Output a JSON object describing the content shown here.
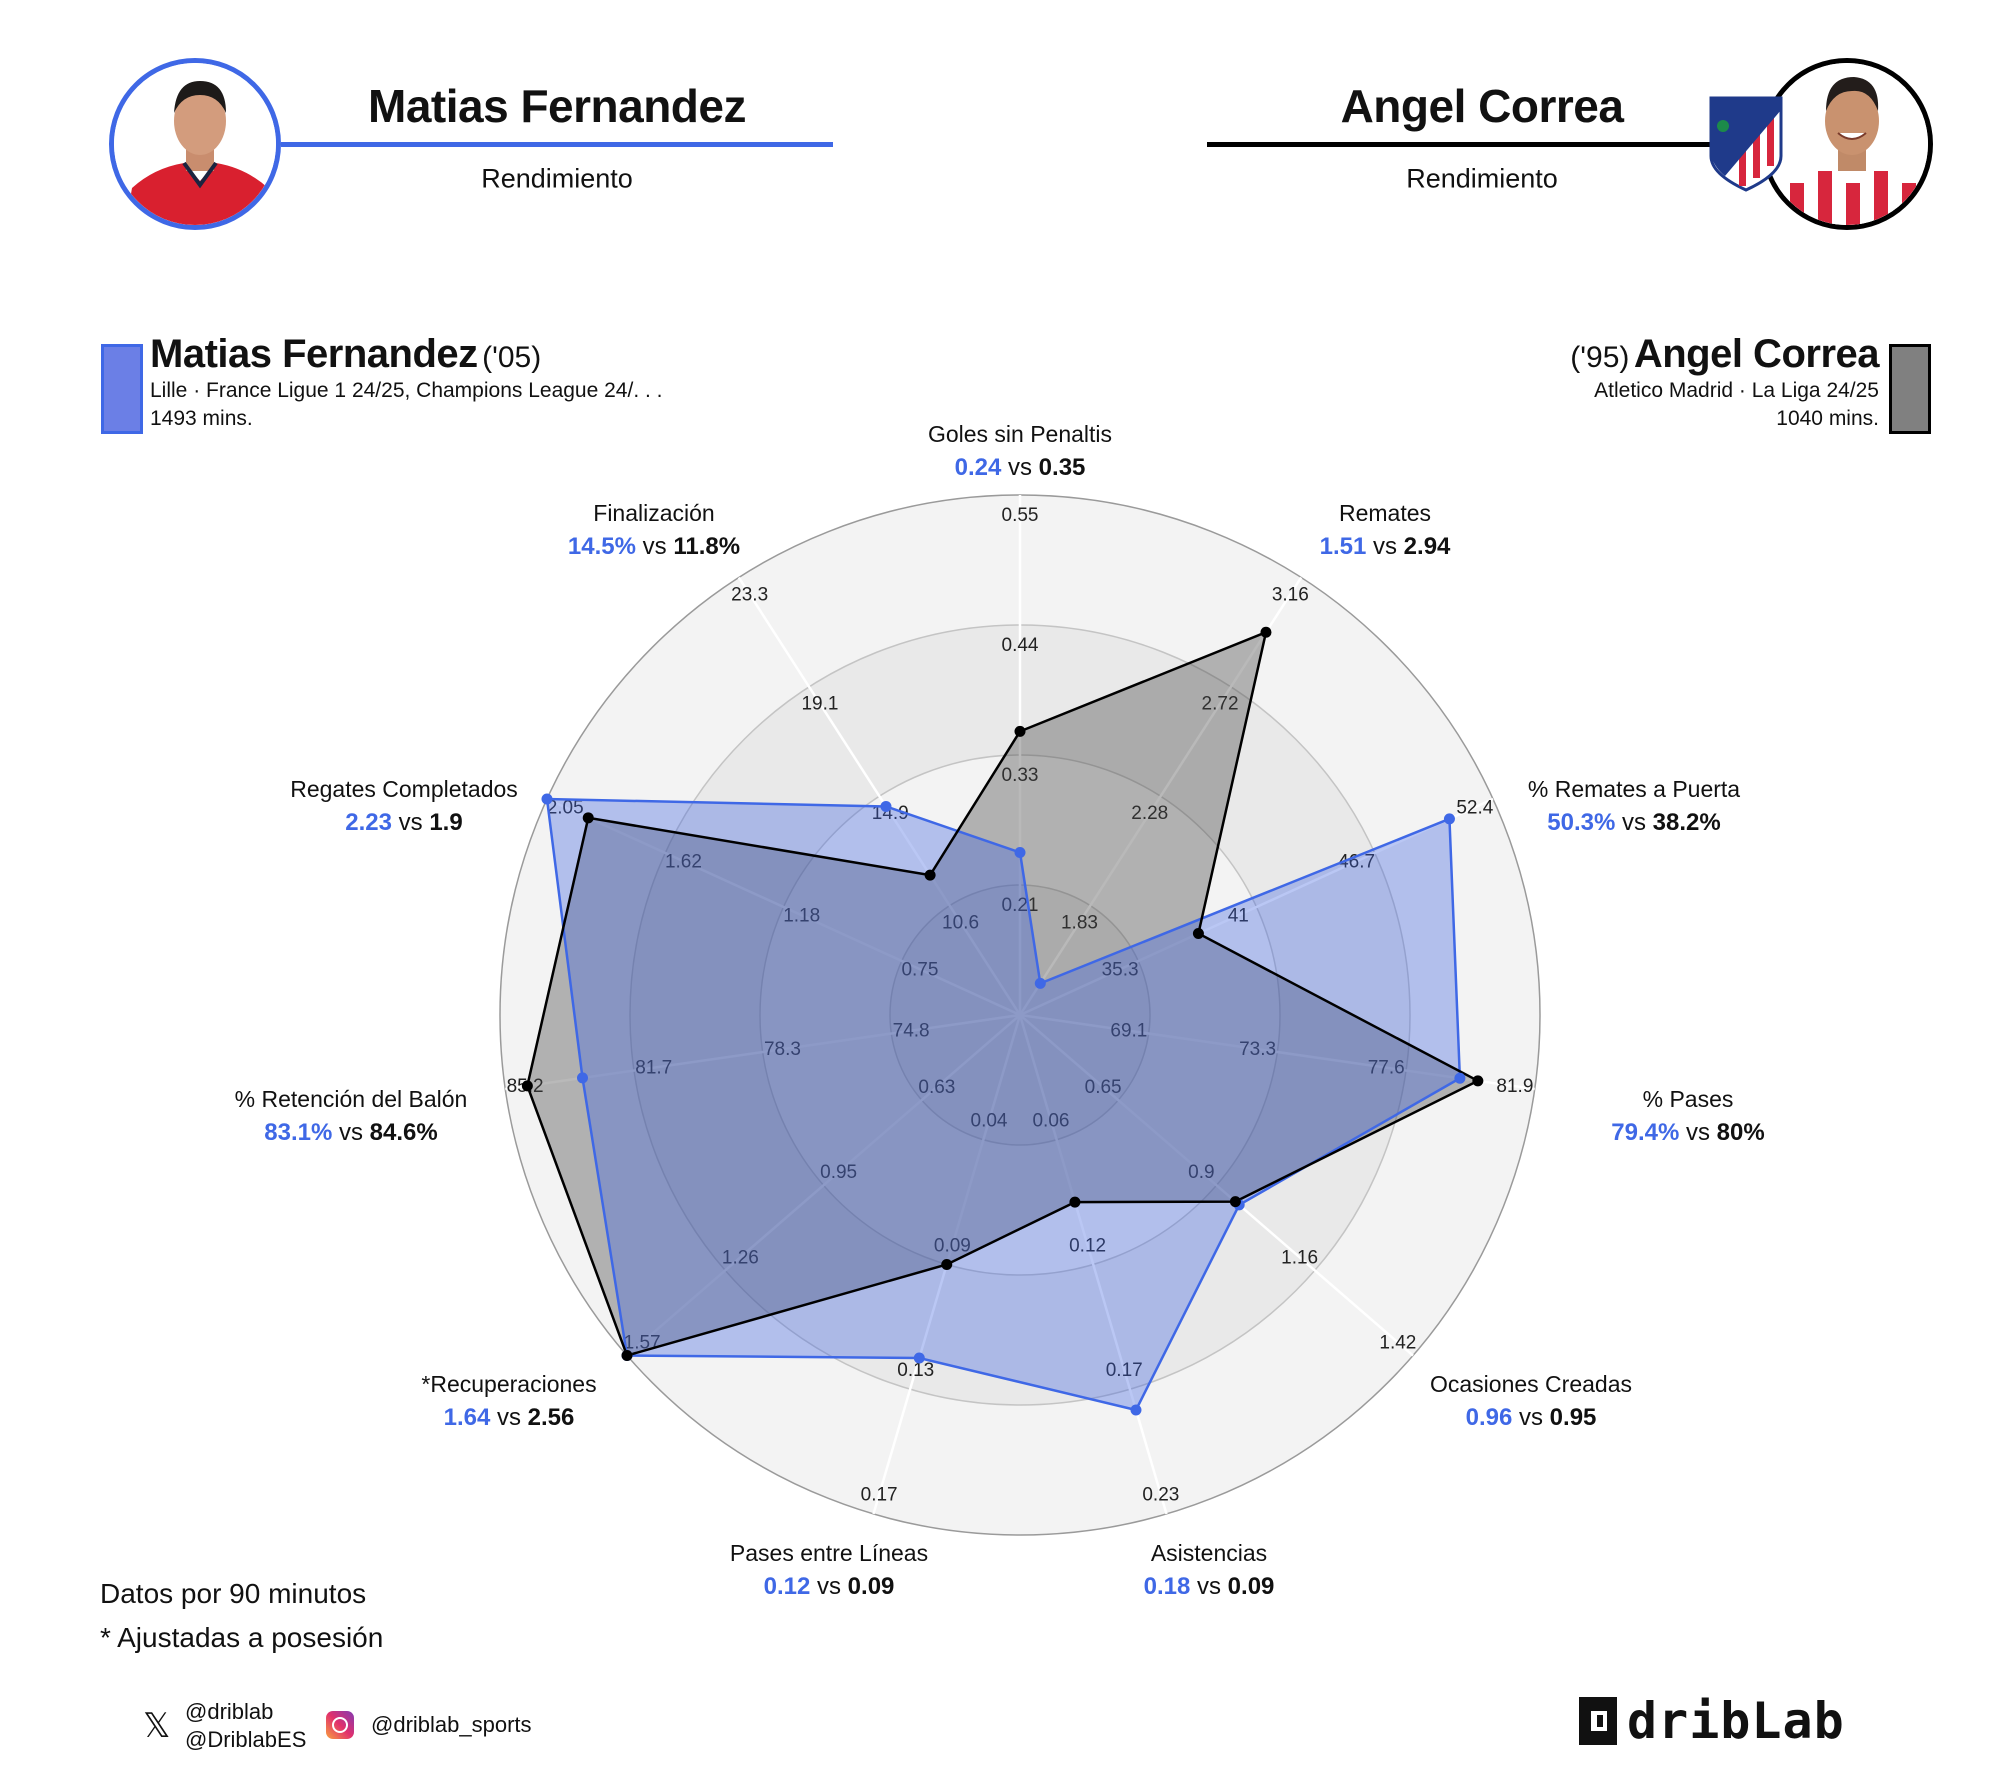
{
  "header": {
    "left": {
      "name": "Matias Fernandez",
      "subtitle": "Rendimiento",
      "color": "#3f68e6"
    },
    "right": {
      "name": "Angel Correa",
      "subtitle": "Rendimiento",
      "color": "#000000"
    }
  },
  "legend": {
    "left": {
      "name": "Matias Fernandez",
      "year": "('05)",
      "club_line": "Lille · France Ligue 1 24/25, Champions League 24/. . .",
      "minutes": "1493 mins.",
      "color": "#6b7fe6"
    },
    "right": {
      "name": "Angel Correa",
      "year": "('95)",
      "club_line": "Atletico Madrid · La Liga 24/25",
      "minutes": "1040 mins.",
      "color": "#808080"
    }
  },
  "chart_data": {
    "type": "radar",
    "series": [
      {
        "name": "Matias Fernandez",
        "color": "#3f68e6"
      },
      {
        "name": "Angel Correa",
        "color": "#000000"
      }
    ],
    "vs_word": "vs",
    "axes": [
      {
        "label": "Goles sin Penaltis",
        "ticks": [
          "0.21",
          "0.33",
          "0.44",
          "0.55"
        ],
        "values": [
          0.24,
          0.35
        ],
        "text": [
          "0.24",
          "0.35"
        ]
      },
      {
        "label": "Remates",
        "ticks": [
          "1.83",
          "2.28",
          "2.72",
          "3.16"
        ],
        "values": [
          1.51,
          2.94
        ],
        "text": [
          "1.51",
          "2.94"
        ]
      },
      {
        "label": "% Remates a Puerta",
        "ticks": [
          "35.3",
          "41",
          "46.7",
          "52.4"
        ],
        "values": [
          50.3,
          38.2
        ],
        "text": [
          "50.3%",
          "38.2%"
        ]
      },
      {
        "label": "% Pases",
        "ticks": [
          "69.1",
          "73.3",
          "77.6",
          "81.9"
        ],
        "values": [
          79.4,
          80
        ],
        "text": [
          "79.4%",
          "80%"
        ]
      },
      {
        "label": "Ocasiones Creadas",
        "ticks": [
          "0.65",
          "0.9",
          "1.16",
          "1.42"
        ],
        "values": [
          0.96,
          0.95
        ],
        "text": [
          "0.96",
          "0.95"
        ]
      },
      {
        "label": "Asistencias",
        "ticks": [
          "0.06",
          "0.12",
          "0.17",
          "0.23"
        ],
        "values": [
          0.18,
          0.09
        ],
        "text": [
          "0.18",
          "0.09"
        ]
      },
      {
        "label": "Pases entre Líneas",
        "ticks": [
          "0.04",
          "0.09",
          "0.13",
          "0.17"
        ],
        "values": [
          0.12,
          0.09
        ],
        "text": [
          "0.12",
          "0.09"
        ]
      },
      {
        "label": "*Recuperaciones",
        "ticks": [
          "0.63",
          "0.95",
          "1.26",
          "1.57"
        ],
        "values": [
          1.64,
          2.56
        ],
        "text": [
          "1.64",
          "2.56"
        ]
      },
      {
        "label": "% Retención del Balón",
        "ticks": [
          "74.8",
          "78.3",
          "81.7",
          "85.2"
        ],
        "values": [
          83.1,
          84.6
        ],
        "text": [
          "83.1%",
          "84.6%"
        ]
      },
      {
        "label": "Regates Completados",
        "ticks": [
          "0.75",
          "1.18",
          "1.62",
          "2.05"
        ],
        "values": [
          2.23,
          1.9
        ],
        "text": [
          "2.23",
          "1.9"
        ]
      },
      {
        "label": "Finalización",
        "ticks": [
          "10.6",
          "14.9",
          "19.1",
          "23.3"
        ],
        "values": [
          14.5,
          11.8
        ],
        "text": [
          "14.5%",
          "11.8%"
        ]
      }
    ]
  },
  "footer": {
    "note1": "Datos por 90 minutos",
    "note2": "* Ajustadas a posesión",
    "twitter_handle_1": "@driblab",
    "twitter_handle_2": "@DriblabES",
    "instagram_handle": "@driblab_sports",
    "brand": "dribLab"
  }
}
